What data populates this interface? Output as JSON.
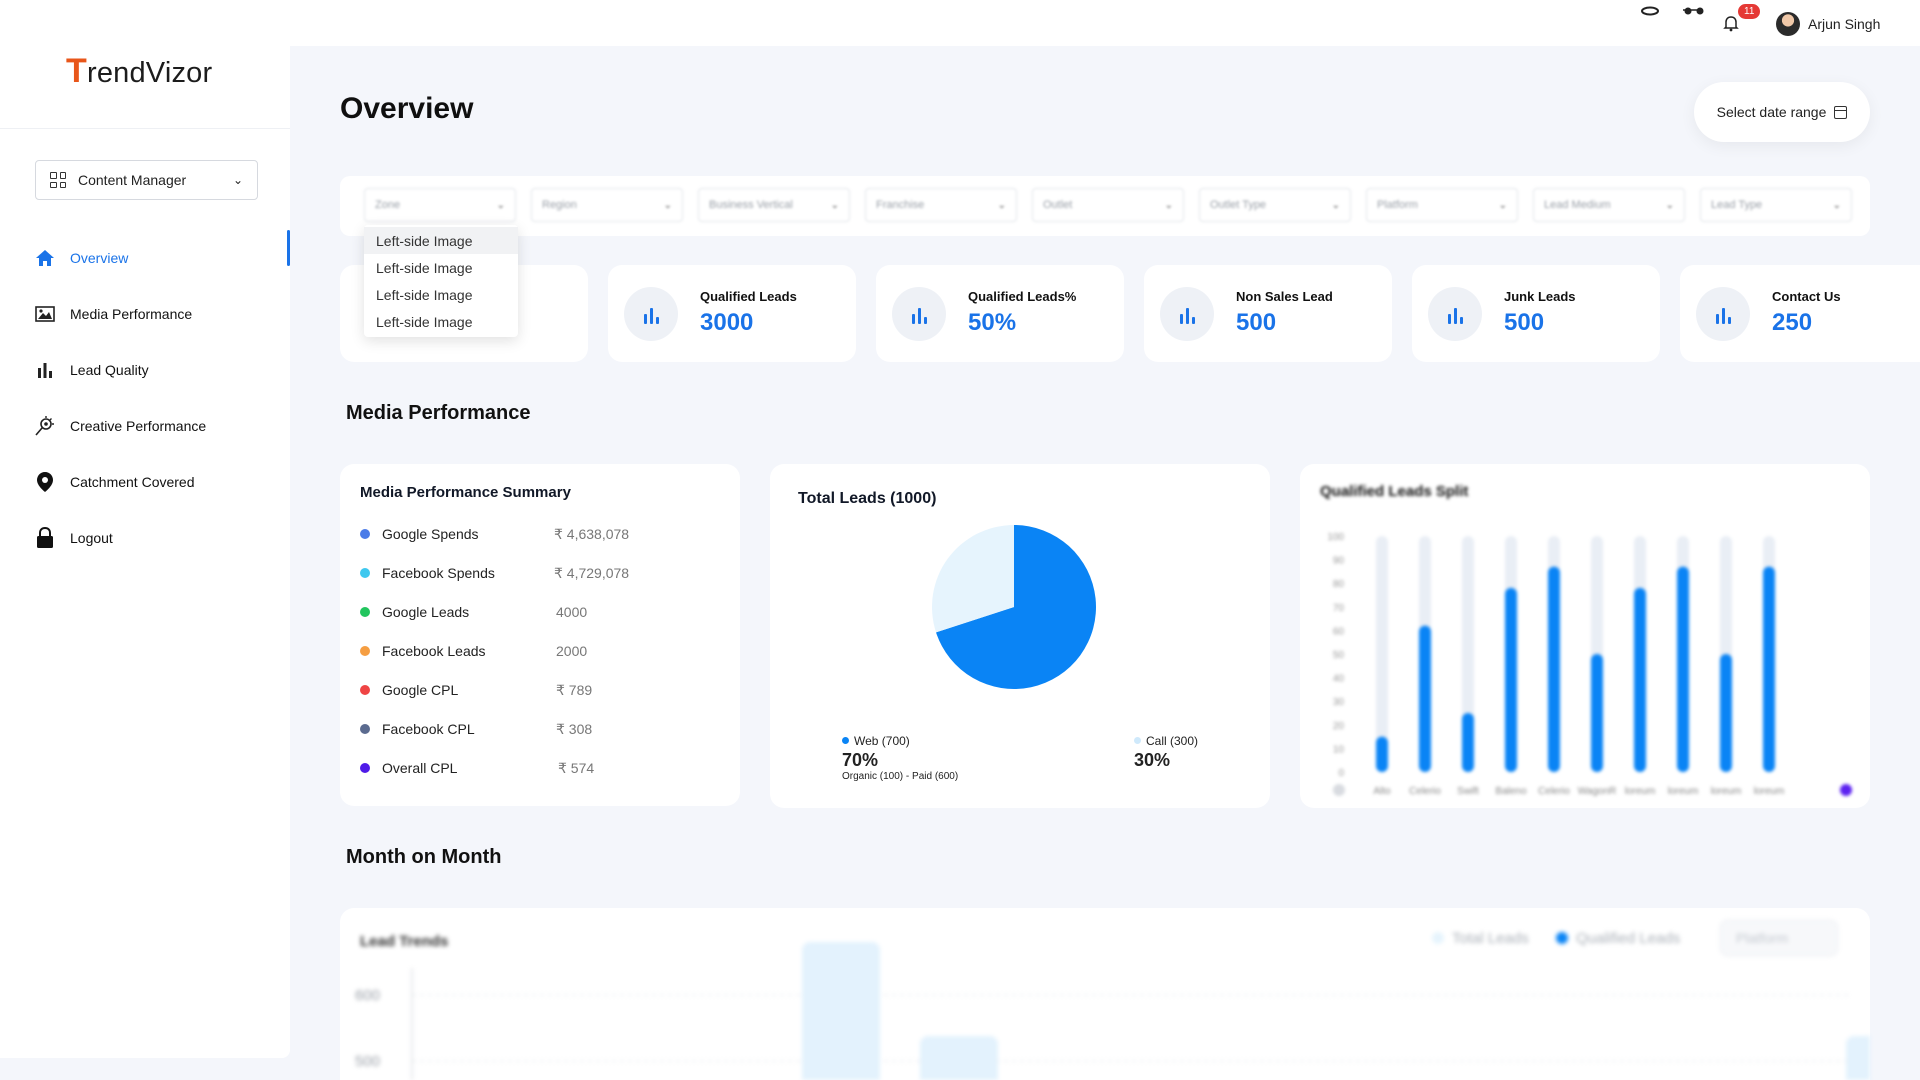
{
  "brand": {
    "logo_t": "T",
    "logo_rest": "rendVizor"
  },
  "header": {
    "notification_count": "11",
    "user_name": "Arjun Singh"
  },
  "sidebar": {
    "content_select": "Content Manager",
    "items": [
      {
        "label": "Overview"
      },
      {
        "label": "Media Performance"
      },
      {
        "label": "Lead Quality"
      },
      {
        "label": "Creative Performance"
      },
      {
        "label": "Catchment Covered"
      },
      {
        "label": "Logout"
      }
    ]
  },
  "page": {
    "title": "Overview",
    "date_range_label": "Select date range"
  },
  "filters": [
    "Zone",
    "Region",
    "Business Vertical",
    "Franchise",
    "Outlet",
    "Outlet Type",
    "Platform",
    "Lead Medium",
    "Lead Type"
  ],
  "zone_dropdown": [
    "Left-side Image",
    "Left-side Image",
    "Left-side Image",
    "Left-side Image"
  ],
  "stats": [
    {
      "label": "Qualified Leads",
      "value": "3000"
    },
    {
      "label": "Qualified Leads%",
      "value": "50%"
    },
    {
      "label": "Non Sales Lead",
      "value": "500"
    },
    {
      "label": "Junk Leads",
      "value": "500"
    },
    {
      "label": "Contact Us",
      "value": "250"
    }
  ],
  "sections": {
    "media_performance": "Media Performance",
    "month_on_month": "Month on Month"
  },
  "media_summary": {
    "title": "Media Performance Summary",
    "rows": [
      {
        "name": "Google Spends",
        "value": "₹ 4,638,078",
        "color": "#4a7be8"
      },
      {
        "name": "Facebook Spends",
        "value": "₹ 4,729,078",
        "color": "#3ec8ef"
      },
      {
        "name": "Google Leads",
        "value": "4000",
        "color": "#22c55e"
      },
      {
        "name": "Facebook Leads",
        "value": "2000",
        "color": "#f59e42"
      },
      {
        "name": "Google CPL",
        "value": "₹ 789",
        "color": "#ef4444"
      },
      {
        "name": "Facebook CPL",
        "value": "₹ 308",
        "color": "#5b6b8f"
      },
      {
        "name": "Overall CPL",
        "value": "₹ 574",
        "color": "#4f1be8"
      }
    ]
  },
  "total_leads": {
    "title": "Total Leads (1000)",
    "web_label": "Web (700)",
    "web_pct": "70%",
    "web_sub": "Organic (100) - Paid (600)",
    "call_label": "Call (300)",
    "call_pct": "30%"
  },
  "colors": {
    "accent": "#1a73e8",
    "pie_web": "#0a84f5",
    "pie_call": "#e6f4fd"
  },
  "chart_data": [
    {
      "type": "pie",
      "title": "Total Leads (1000)",
      "categories": [
        "Web (700)",
        "Call (300)"
      ],
      "values": [
        700,
        300
      ]
    },
    {
      "type": "bar",
      "title": "Qualified Leads Split",
      "categories": [
        "Alto",
        "Celerio",
        "Swift",
        "Baleno",
        "Celerio",
        "WagonR",
        "loreum",
        "loreum",
        "loreum",
        "loreum"
      ],
      "values": [
        15,
        62,
        25,
        78,
        87,
        50,
        78,
        87,
        50,
        87
      ],
      "ylim": [
        0,
        100
      ],
      "yticks": [
        0,
        10,
        20,
        30,
        40,
        50,
        60,
        70,
        80,
        90,
        100
      ]
    },
    {
      "type": "bar",
      "title": "Lead Trends",
      "legend": [
        "Total Leads",
        "Qualified Leads"
      ],
      "yticks": [
        600,
        500
      ],
      "platform_select": "Platform"
    }
  ]
}
